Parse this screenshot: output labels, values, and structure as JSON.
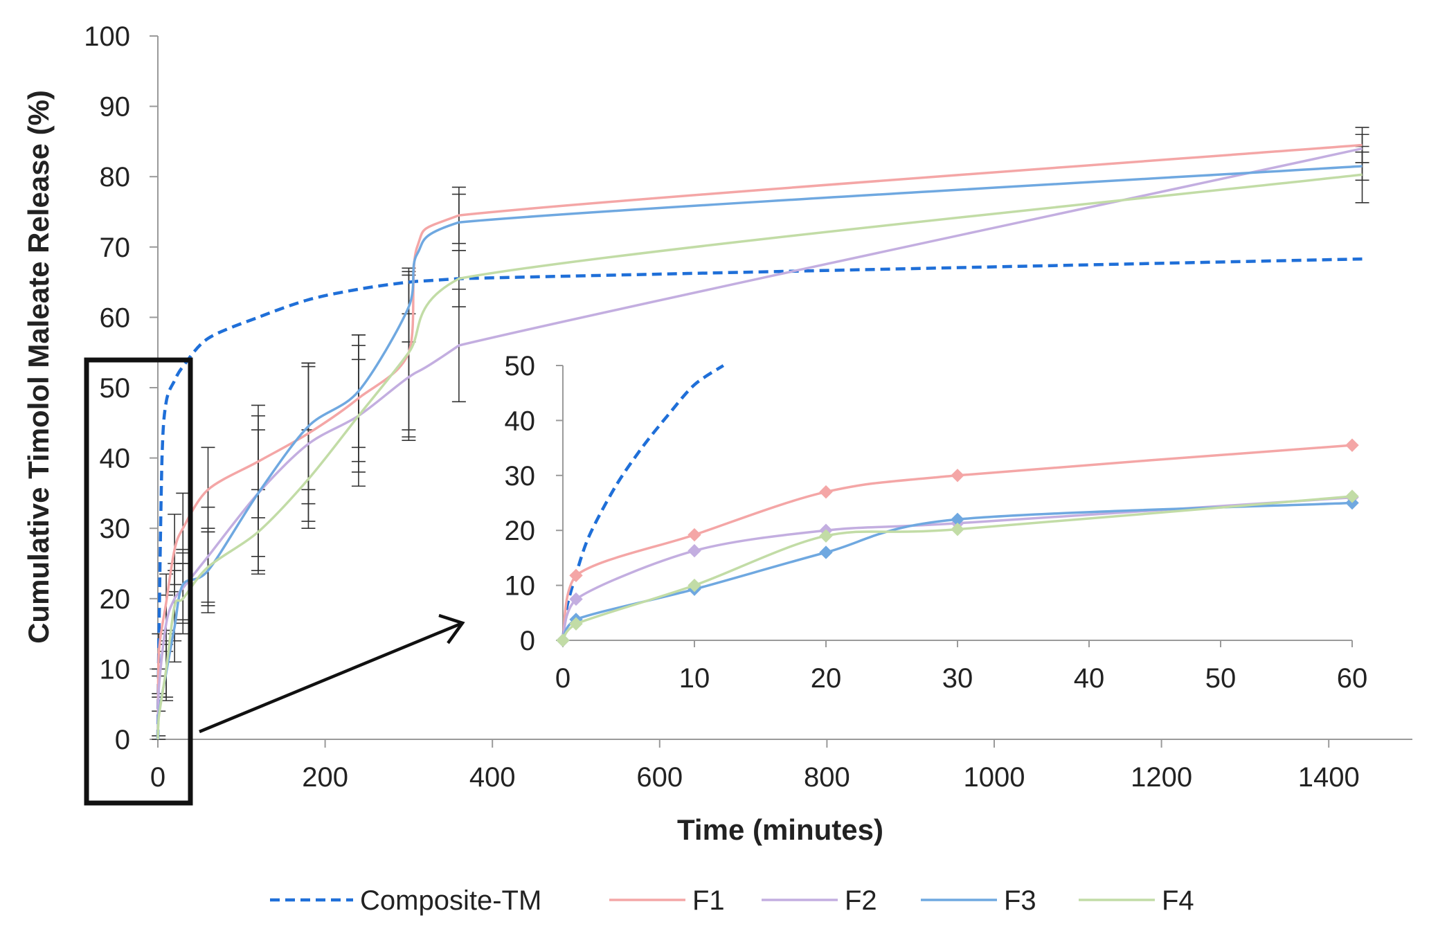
{
  "chart_data": {
    "type": "line",
    "xlabel": "Time (minutes)",
    "ylabel": "Cumulative Timolol Maleate Release (%)",
    "xlim": [
      0,
      1500
    ],
    "ylim": [
      0,
      100
    ],
    "xticks": [
      0,
      200,
      400,
      600,
      800,
      1000,
      1200,
      1400
    ],
    "yticks": [
      0,
      10,
      20,
      30,
      40,
      50,
      60,
      70,
      80,
      90,
      100
    ],
    "legend_position": "bottom",
    "series": [
      {
        "name": "Composite-TM",
        "color": "#1f6fd8",
        "dash": true,
        "x": [
          0,
          1,
          5,
          10,
          20,
          30,
          60,
          120,
          180,
          240,
          300,
          360,
          1440
        ],
        "y": [
          0,
          12,
          40,
          48,
          51,
          53,
          57,
          60,
          62.5,
          64,
          65,
          65.5,
          68.3
        ]
      },
      {
        "name": "F1",
        "color": "#f4a6a6",
        "dash": false,
        "x": [
          0,
          1,
          10,
          20,
          30,
          60,
          120,
          180,
          240,
          300,
          310,
          360,
          1440
        ],
        "y": [
          0,
          12,
          19.5,
          27,
          30,
          35.5,
          39.5,
          43.5,
          48.5,
          55,
          70,
          74.5,
          84.5
        ],
        "err": [
          0,
          3,
          4,
          5,
          5,
          6,
          8,
          10,
          9,
          12,
          0,
          4,
          2.5
        ]
      },
      {
        "name": "F2",
        "color": "#c3aee0",
        "dash": false,
        "x": [
          0,
          1,
          10,
          20,
          30,
          60,
          120,
          180,
          240,
          300,
          360,
          1440
        ],
        "y": [
          0,
          7,
          16.5,
          20,
          21.5,
          26,
          35,
          42,
          46,
          51.5,
          56,
          84
        ],
        "err": [
          0,
          3,
          4,
          5,
          5,
          7,
          9,
          11,
          10,
          9,
          8,
          2
        ]
      },
      {
        "name": "F3",
        "color": "#6fa8e0",
        "dash": false,
        "x": [
          0,
          1,
          10,
          20,
          30,
          60,
          120,
          180,
          240,
          300,
          310,
          360,
          1440
        ],
        "y": [
          0,
          3.5,
          9.5,
          16,
          22,
          24,
          35,
          44.5,
          49.5,
          61.5,
          69,
          73.5,
          81.5
        ],
        "err": [
          0,
          3,
          4,
          5,
          5,
          6,
          11,
          9,
          8,
          5,
          0,
          4,
          2
        ]
      },
      {
        "name": "F4",
        "color": "#c2dca6",
        "dash": false,
        "x": [
          0,
          1,
          10,
          20,
          30,
          60,
          120,
          180,
          240,
          300,
          360,
          1440
        ],
        "y": [
          0,
          3,
          10,
          19,
          20,
          24.5,
          29.5,
          37,
          46,
          55,
          65.5,
          80.3
        ],
        "err": [
          0,
          3,
          4,
          5,
          5,
          5,
          6,
          7,
          8,
          11,
          4,
          4
        ]
      }
    ],
    "inset": {
      "xlim": [
        0,
        60
      ],
      "ylim": [
        0,
        50
      ],
      "xticks": [
        0,
        10,
        20,
        30,
        40,
        50,
        60
      ],
      "yticks": [
        0,
        10,
        20,
        30,
        40,
        50
      ],
      "series": [
        {
          "name": "Composite-TM",
          "color": "#1f6fd8",
          "dash": true,
          "markers": false,
          "x": [
            0,
            0.3,
            1,
            2,
            4,
            6,
            8,
            10,
            12.2
          ],
          "y": [
            0,
            6,
            12,
            19,
            28,
            35,
            41,
            46.5,
            50
          ]
        },
        {
          "name": "F1",
          "color": "#f4a6a6",
          "dash": false,
          "markers": true,
          "x": [
            0,
            1,
            10,
            20,
            30,
            60
          ],
          "y": [
            0,
            11.8,
            19.2,
            27,
            30,
            35.5
          ]
        },
        {
          "name": "F2",
          "color": "#c3aee0",
          "dash": false,
          "markers": true,
          "x": [
            0,
            1,
            10,
            20,
            30,
            60
          ],
          "y": [
            0,
            7.5,
            16.3,
            20,
            21.3,
            26
          ]
        },
        {
          "name": "F3",
          "color": "#6fa8e0",
          "dash": false,
          "markers": true,
          "x": [
            0,
            1,
            10,
            20,
            30,
            60
          ],
          "y": [
            0,
            3.8,
            9.3,
            16,
            22,
            25
          ]
        },
        {
          "name": "F4",
          "color": "#c2dca6",
          "dash": false,
          "markers": true,
          "x": [
            0,
            1,
            10,
            20,
            30,
            60
          ],
          "y": [
            0,
            3,
            10,
            19,
            20.2,
            26.2
          ]
        }
      ]
    }
  }
}
